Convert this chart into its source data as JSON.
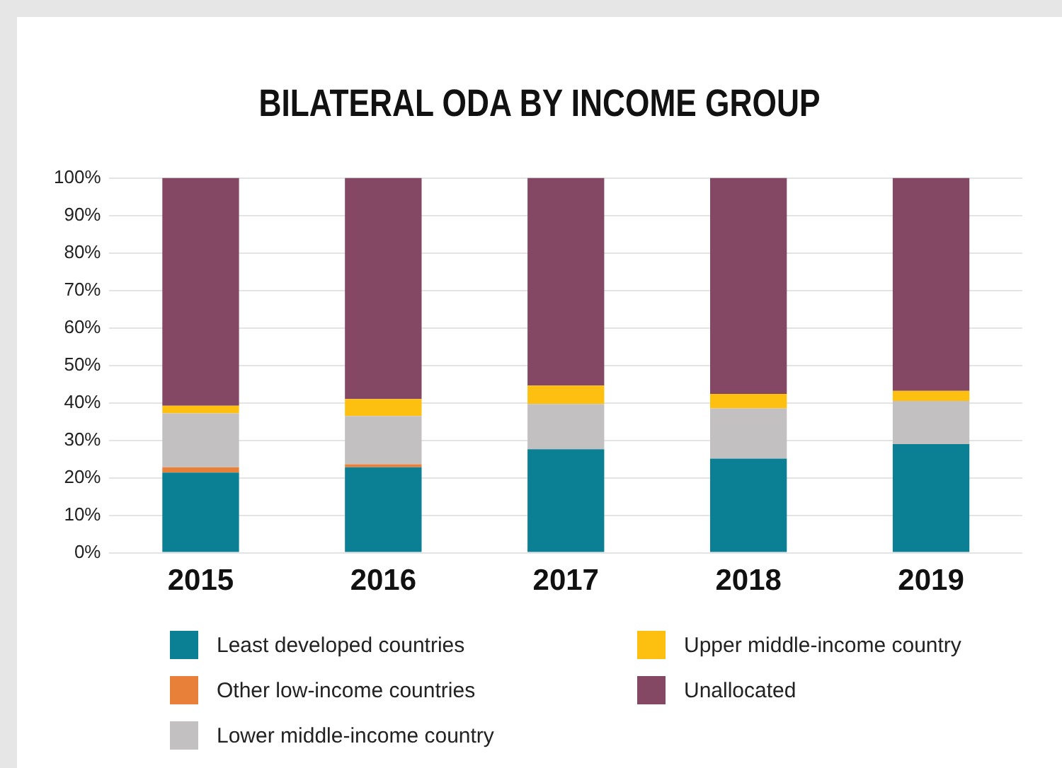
{
  "chart_data": {
    "type": "bar",
    "title": "BILATERAL ODA BY INCOME GROUP",
    "categories": [
      "2015",
      "2016",
      "2017",
      "2018",
      "2019"
    ],
    "stacked": true,
    "series": [
      {
        "name": "Least developed countries",
        "color": "#0b8094",
        "values": [
          21.4,
          22.8,
          27.6,
          25.1,
          29.0
        ]
      },
      {
        "name": "Other low-income countries",
        "color": "#e8803a",
        "values": [
          1.4,
          0.8,
          0,
          0,
          0
        ]
      },
      {
        "name": "Lower middle-income country",
        "color": "#c2c0c1",
        "values": [
          14.4,
          12.9,
          12.1,
          13.4,
          11.5
        ]
      },
      {
        "name": "Upper middle-income country",
        "color": "#fdc010",
        "values": [
          2.0,
          4.5,
          4.9,
          3.9,
          2.7
        ]
      },
      {
        "name": "Unallocated",
        "color": "#844864",
        "values": [
          60.8,
          59.0,
          55.4,
          57.6,
          56.8
        ]
      }
    ],
    "ylim": [
      0,
      100
    ],
    "yticks": [
      {
        "value": 0,
        "label": "0%"
      },
      {
        "value": 10,
        "label": "10%"
      },
      {
        "value": 20,
        "label": "20%"
      },
      {
        "value": 30,
        "label": "30%"
      },
      {
        "value": 40,
        "label": "40%"
      },
      {
        "value": 50,
        "label": "50%"
      },
      {
        "value": 60,
        "label": "60%"
      },
      {
        "value": 70,
        "label": "70%"
      },
      {
        "value": 80,
        "label": "80%"
      },
      {
        "value": 90,
        "label": "90%"
      },
      {
        "value": 100,
        "label": "100%"
      }
    ],
    "grid": "y",
    "legend": "bottom"
  }
}
